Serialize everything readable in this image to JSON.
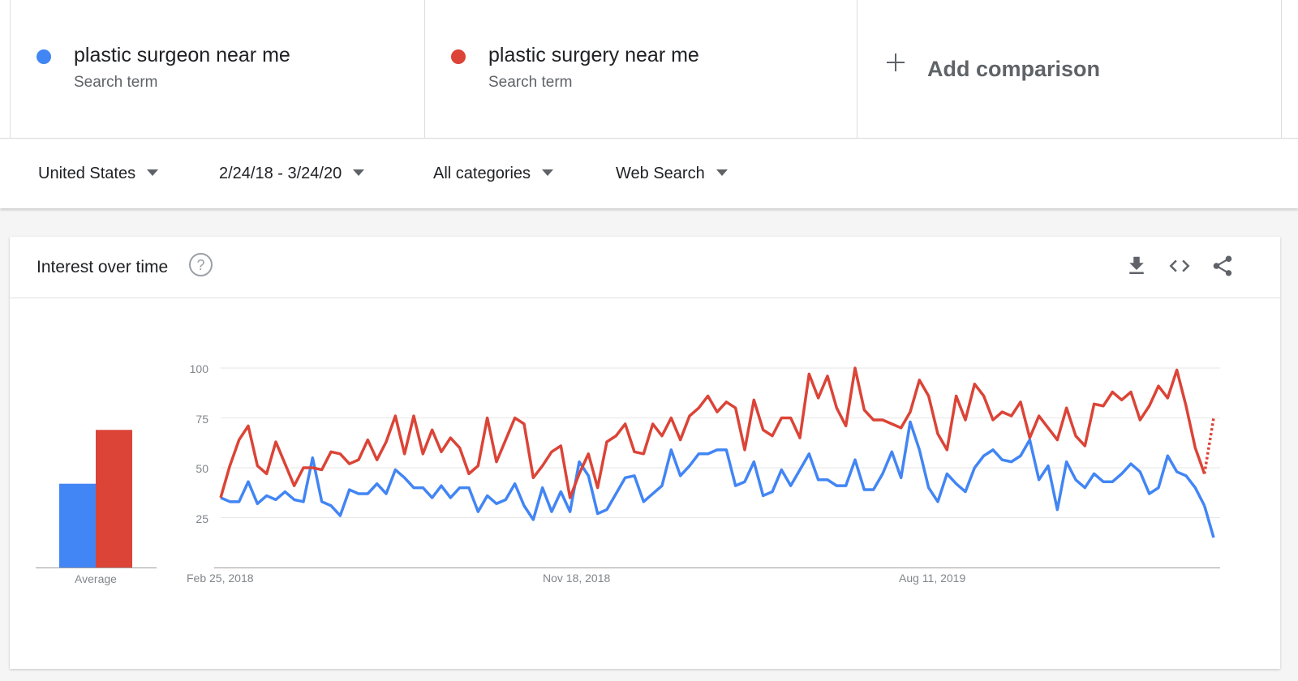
{
  "terms": [
    {
      "name": "plastic surgeon near me",
      "subtitle": "Search term",
      "color": "#4285f4"
    },
    {
      "name": "plastic surgery near me",
      "subtitle": "Search term",
      "color": "#db4437"
    }
  ],
  "add_comparison": {
    "label": "Add comparison",
    "icon": "plus-icon"
  },
  "filters": {
    "region": "United States",
    "date_range": "2/24/18 - 3/24/20",
    "category": "All categories",
    "search_type": "Web Search"
  },
  "card": {
    "title": "Interest over time",
    "help_icon": "question-icon",
    "actions": [
      "download-icon",
      "embed-icon",
      "share-icon"
    ]
  },
  "chart_data": {
    "type": "line",
    "ylim": [
      0,
      100
    ],
    "yticks": [
      25,
      50,
      75,
      100
    ],
    "x_tick_labels": [
      "Feb 25, 2018",
      "Nov 18, 2018",
      "Aug 11, 2019"
    ],
    "grid": true,
    "legend": "none",
    "average": {
      "label": "Average",
      "values": [
        42,
        69
      ]
    },
    "series": [
      {
        "name": "plastic surgeon near me",
        "color": "#4285f4",
        "values": [
          35,
          33,
          33,
          43,
          32,
          36,
          34,
          38,
          34,
          33,
          55,
          33,
          31,
          26,
          39,
          37,
          37,
          42,
          37,
          49,
          45,
          40,
          40,
          35,
          41,
          35,
          40,
          40,
          28,
          36,
          32,
          34,
          42,
          31,
          24,
          40,
          28,
          38,
          28,
          53,
          46,
          27,
          29,
          37,
          45,
          46,
          33,
          37,
          41,
          59,
          46,
          51,
          57,
          57,
          59,
          59,
          41,
          43,
          53,
          36,
          38,
          49,
          41,
          49,
          57,
          44,
          44,
          41,
          41,
          54,
          39,
          39,
          47,
          58,
          45,
          73,
          59,
          40,
          33,
          47,
          42,
          38,
          50,
          56,
          59,
          54,
          53,
          56,
          64,
          44,
          51,
          29,
          53,
          44,
          40,
          47,
          43,
          43,
          47,
          52,
          48,
          37,
          40,
          56,
          48,
          46,
          40,
          31,
          15
        ]
      },
      {
        "name": "plastic surgery near me",
        "color": "#db4437",
        "values": [
          35,
          51,
          64,
          71,
          51,
          47,
          63,
          52,
          41,
          50,
          50,
          49,
          58,
          57,
          52,
          54,
          64,
          54,
          63,
          76,
          57,
          76,
          57,
          69,
          58,
          65,
          60,
          47,
          51,
          75,
          53,
          64,
          75,
          72,
          45,
          51,
          58,
          61,
          35,
          47,
          57,
          40,
          63,
          66,
          72,
          58,
          57,
          72,
          66,
          75,
          64,
          76,
          80,
          86,
          78,
          83,
          80,
          59,
          84,
          69,
          66,
          75,
          75,
          65,
          97,
          85,
          96,
          80,
          71,
          100,
          79,
          74,
          74,
          72,
          70,
          78,
          94,
          86,
          67,
          59,
          86,
          74,
          92,
          86,
          74,
          78,
          76,
          83,
          65,
          76,
          70,
          64,
          80,
          66,
          61,
          82,
          81,
          88,
          84,
          88,
          74,
          81,
          91,
          85,
          99,
          81,
          60,
          47,
          75
        ]
      }
    ]
  }
}
